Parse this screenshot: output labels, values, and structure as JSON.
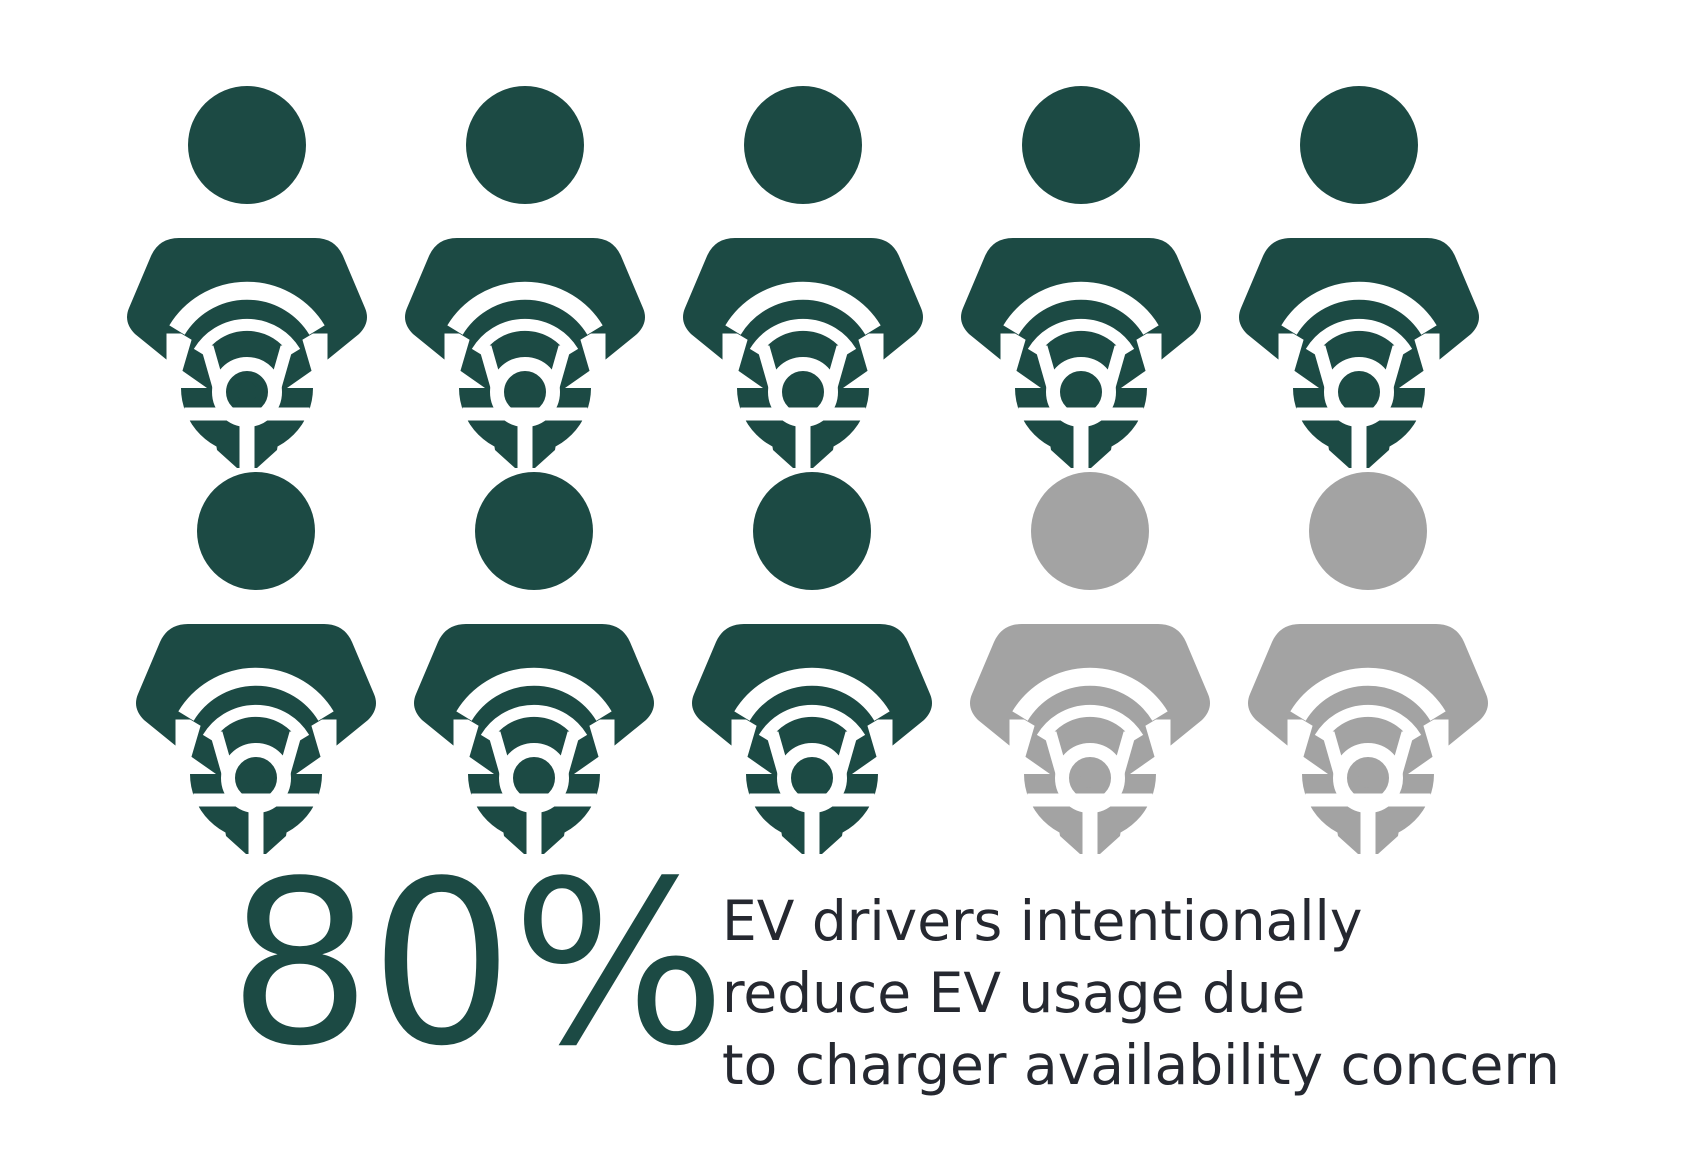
{
  "colors": {
    "active": "#1c4a44",
    "inactive": "#a3a3a3",
    "wheel": "#ffffff",
    "caption_text": "#252830"
  },
  "icon": "driver-steering-wheel-icon",
  "chart_data": {
    "type": "pictograph",
    "total_icons": 10,
    "highlighted_icons": 8,
    "value": 80,
    "unit": "%",
    "rows": 2,
    "icons_per_row": 5
  },
  "stat": {
    "value_label": "80%"
  },
  "caption": {
    "line1": "EV drivers intentionally",
    "line2": "reduce EV usage due",
    "line3": "to charger availability concern"
  }
}
